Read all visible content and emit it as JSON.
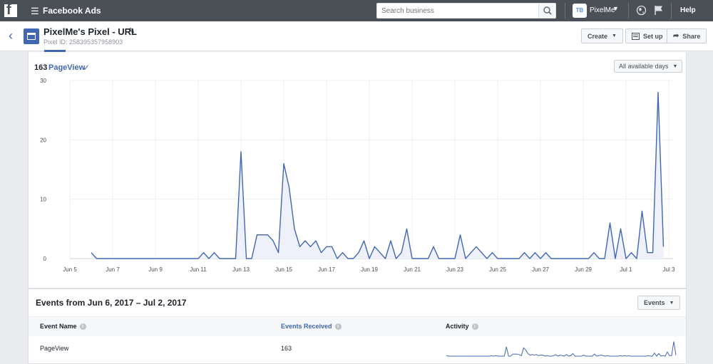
{
  "topbar": {
    "app_title": "Facebook Ads",
    "search_placeholder": "Search business",
    "account_initials": "TB",
    "account_name": "PixelMe",
    "help_label": "Help"
  },
  "header": {
    "pixel_name": "PixelMe's Pixel - URL",
    "pixel_id": "Pixel ID: 258395357958903",
    "create_label": "Create",
    "setup_label": "Set up",
    "share_label": "Share"
  },
  "summary": {
    "count": "163",
    "metric": "PageView",
    "date_range_label": "All available days"
  },
  "chart_data": {
    "type": "area",
    "title": "",
    "xlabel": "",
    "ylabel": "",
    "ylim": [
      0,
      30
    ],
    "yticks": [
      "30",
      "20",
      "10",
      "0"
    ],
    "xtick_labels": [
      "Jun 5",
      "Jun 7",
      "Jun 9",
      "Jun 11",
      "Jun 13",
      "Jun 15",
      "Jun 17",
      "Jun 19",
      "Jun 21",
      "Jun 23",
      "Jun 25",
      "Jun 27",
      "Jun 29",
      "Jul 1",
      "Jul 3"
    ],
    "x_start": "Jun 5",
    "points_per_day": 4,
    "series": [
      {
        "name": "PageView",
        "color": "#4267b2",
        "values": [
          1,
          0,
          0,
          0,
          0,
          0,
          0,
          0,
          0,
          0,
          0,
          0,
          0,
          0,
          0,
          0,
          0,
          0,
          0,
          0,
          0,
          1,
          0,
          1,
          0,
          0,
          0,
          0,
          18,
          0,
          0,
          4,
          4,
          4,
          3,
          1,
          16,
          12,
          5,
          2,
          3,
          2,
          3,
          1,
          2,
          2,
          0,
          1,
          0,
          0,
          1,
          3,
          0,
          2,
          1,
          0,
          3,
          0,
          1,
          5,
          0,
          0,
          0,
          0,
          2,
          0,
          0,
          0,
          0,
          4,
          0,
          1,
          2,
          1,
          0,
          1,
          0,
          0,
          0,
          0,
          0,
          1,
          0,
          1,
          0,
          1,
          0,
          0,
          0,
          0,
          0,
          0,
          0,
          0,
          1,
          0,
          0,
          6,
          0,
          5,
          0,
          1,
          0,
          8,
          1,
          1,
          28,
          2
        ],
        "dashed_from_index": 108
      }
    ]
  },
  "events": {
    "title": "Events from Jun 6, 2017 – Jul 2, 2017",
    "button_label": "Events",
    "col_event_name": "Event Name",
    "col_events_received": "Events Received",
    "col_activity": "Activity",
    "rows": [
      {
        "name": "PageView",
        "received": "163"
      }
    ]
  }
}
